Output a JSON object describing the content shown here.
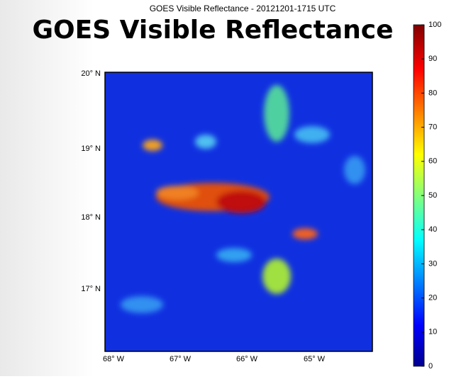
{
  "header": {
    "title": "GOES Visible Reflectance",
    "subtitle": "GOES Visible Reflectance - 20121201-1715 UTC"
  },
  "map": {
    "lat_labels": [
      "20° N",
      "19° N",
      "18° N",
      "17° N"
    ],
    "lon_labels": [
      "68° W",
      "67° W",
      "66° W",
      "65° W"
    ]
  },
  "colorbar": {
    "lim": [
      0,
      100
    ],
    "ticks": [
      0,
      10,
      20,
      30,
      40,
      50,
      60,
      70,
      80,
      90,
      100
    ]
  }
}
